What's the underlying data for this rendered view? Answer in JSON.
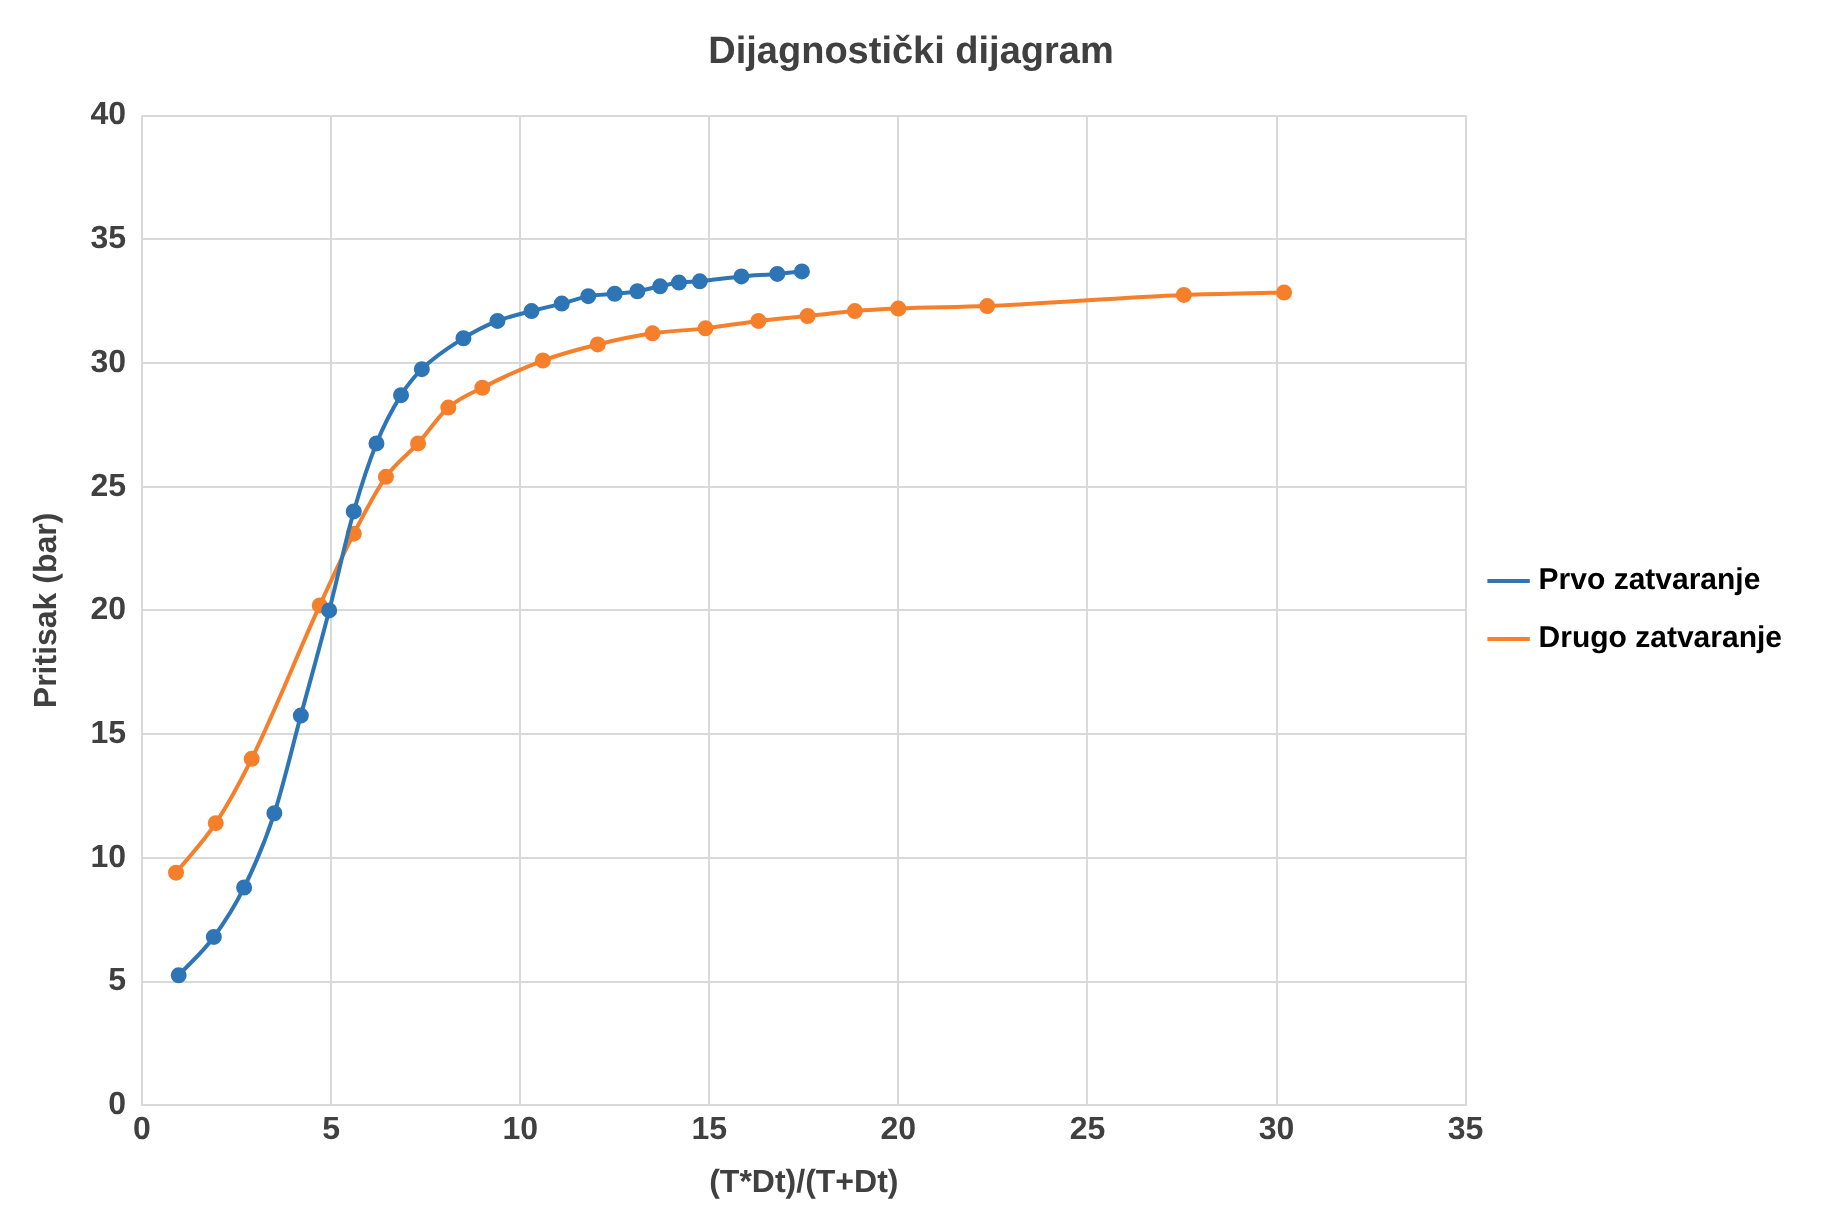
{
  "chart_data": {
    "type": "line",
    "title": "Dijagnostički dijagram",
    "xlabel": "(T*Dt)/(T+Dt)",
    "ylabel": "Pritisak (bar)",
    "xlim": [
      0,
      35
    ],
    "xticks": [
      0,
      5,
      10,
      15,
      20,
      25,
      30,
      35
    ],
    "ylim": [
      0,
      40
    ],
    "yticks": [
      0,
      5,
      10,
      15,
      20,
      25,
      30,
      35,
      40
    ],
    "grid": true,
    "legend": "right",
    "marker": "circle",
    "series": [
      {
        "name": "Prvo zatvaranje",
        "color": "#2e75b6",
        "x": [
          0.97,
          1.9,
          2.7,
          3.5,
          4.2,
          4.95,
          5.6,
          6.2,
          6.85,
          7.4,
          8.5,
          9.4,
          10.3,
          11.1,
          11.8,
          12.5,
          13.1,
          13.7,
          14.2,
          14.75,
          15.85,
          16.8,
          17.45
        ],
        "values": [
          5.25,
          6.8,
          8.8,
          11.8,
          15.75,
          20,
          24,
          26.75,
          28.7,
          29.75,
          31,
          31.7,
          32.1,
          32.4,
          32.7,
          32.8,
          32.9,
          33.1,
          33.25,
          33.3,
          33.5,
          33.6,
          33.7
        ]
      },
      {
        "name": "Drugo zatvaranje",
        "color": "#f57f2a",
        "x": [
          0.9,
          1.95,
          2.9,
          4.7,
          5.6,
          6.45,
          7.3,
          8.1,
          9.0,
          10.6,
          12.05,
          13.5,
          14.9,
          16.3,
          17.6,
          18.85,
          20.0,
          22.35,
          27.55,
          30.2
        ],
        "values": [
          9.4,
          11.4,
          14,
          20.2,
          23.1,
          25.4,
          26.75,
          28.2,
          29,
          30.1,
          30.75,
          31.2,
          31.4,
          31.7,
          31.9,
          32.1,
          32.2,
          32.3,
          32.75,
          32.85
        ]
      }
    ]
  }
}
